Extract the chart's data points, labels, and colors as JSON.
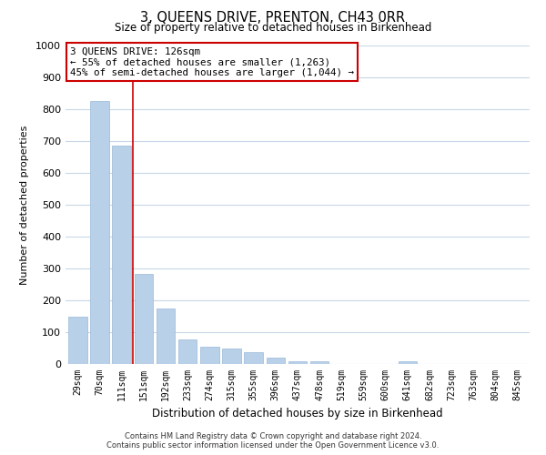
{
  "title": "3, QUEENS DRIVE, PRENTON, CH43 0RR",
  "subtitle": "Size of property relative to detached houses in Birkenhead",
  "bar_labels": [
    "29sqm",
    "70sqm",
    "111sqm",
    "151sqm",
    "192sqm",
    "233sqm",
    "274sqm",
    "315sqm",
    "355sqm",
    "396sqm",
    "437sqm",
    "478sqm",
    "519sqm",
    "559sqm",
    "600sqm",
    "641sqm",
    "682sqm",
    "723sqm",
    "763sqm",
    "804sqm",
    "845sqm"
  ],
  "bar_values": [
    150,
    825,
    685,
    283,
    173,
    78,
    55,
    50,
    38,
    20,
    10,
    8,
    0,
    0,
    0,
    10,
    0,
    0,
    0,
    0,
    0
  ],
  "bar_color": "#b8d0e8",
  "bar_edge_color": "#9ab8d8",
  "vline_color": "#cc0000",
  "xlabel": "Distribution of detached houses by size in Birkenhead",
  "ylabel": "Number of detached properties",
  "ylim": [
    0,
    1000
  ],
  "yticks": [
    0,
    100,
    200,
    300,
    400,
    500,
    600,
    700,
    800,
    900,
    1000
  ],
  "annotation_title": "3 QUEENS DRIVE: 126sqm",
  "annotation_line1": "← 55% of detached houses are smaller (1,263)",
  "annotation_line2": "45% of semi-detached houses are larger (1,044) →",
  "annotation_box_color": "#ffffff",
  "annotation_box_edge": "#cc0000",
  "footer_line1": "Contains HM Land Registry data © Crown copyright and database right 2024.",
  "footer_line2": "Contains public sector information licensed under the Open Government Licence v3.0.",
  "background_color": "#ffffff",
  "grid_color": "#c8d8e8"
}
